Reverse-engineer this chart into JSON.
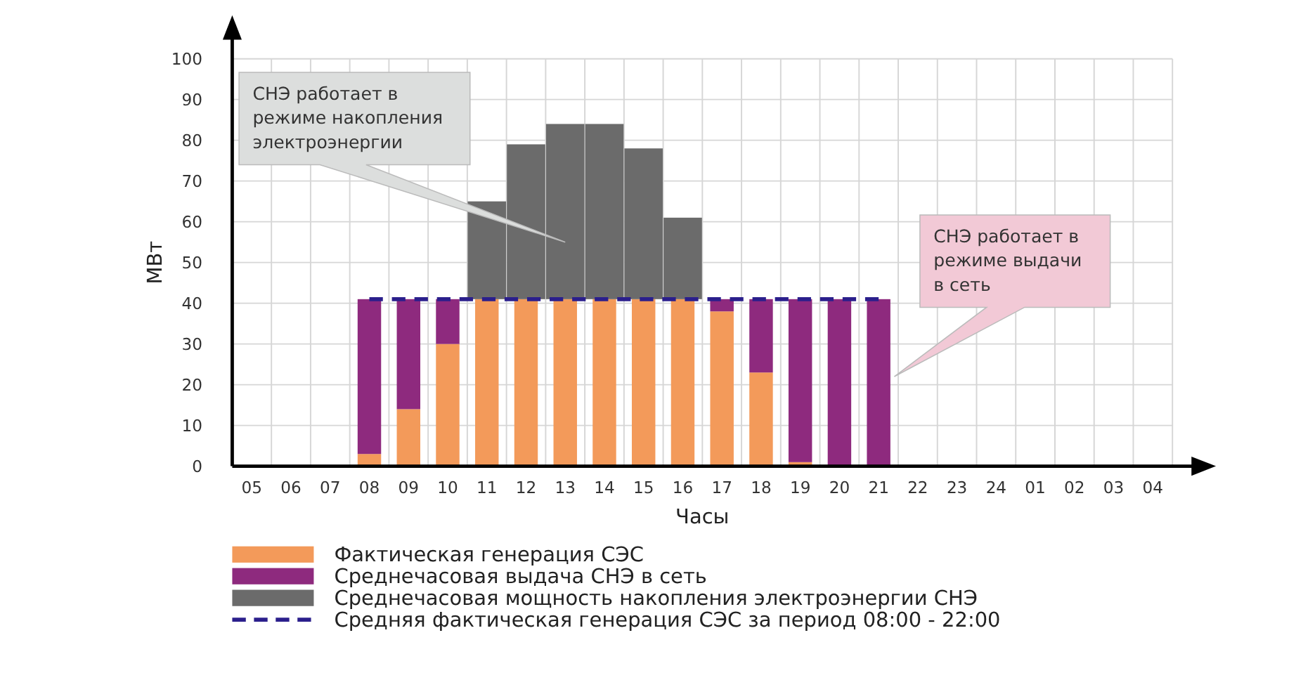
{
  "chart_data": {
    "type": "bar",
    "stacked": true,
    "xlabel": "Часы",
    "ylabel": "МВт",
    "categories": [
      "05",
      "06",
      "07",
      "08",
      "09",
      "10",
      "11",
      "12",
      "13",
      "14",
      "15",
      "16",
      "17",
      "18",
      "19",
      "20",
      "21",
      "22",
      "23",
      "24",
      "01",
      "02",
      "03",
      "04"
    ],
    "series": [
      {
        "name": "Фактическая генерация СЭС",
        "color": "#f39a5a",
        "values": [
          0,
          0,
          0,
          3,
          14,
          30,
          41,
          41,
          41,
          41,
          41,
          41,
          38,
          23,
          1,
          0,
          0,
          0,
          0,
          0,
          0,
          0,
          0,
          0
        ]
      },
      {
        "name": "Среднечасовая выдача СНЭ в сеть",
        "color": "#8e2a7e",
        "values": [
          0,
          0,
          0,
          38,
          27,
          11,
          0,
          0,
          0,
          0,
          0,
          0,
          3,
          18,
          40,
          41,
          41,
          0,
          0,
          0,
          0,
          0,
          0,
          0
        ]
      },
      {
        "name": "Среднечасовая мощность накопления электроэнергии СНЭ",
        "color": "#6b6b6b",
        "values": [
          0,
          0,
          0,
          0,
          0,
          0,
          24,
          38,
          43,
          43,
          37,
          20,
          0,
          0,
          0,
          0,
          0,
          0,
          0,
          0,
          0,
          0,
          0,
          0
        ]
      },
      {
        "name": "Средняя фактическая генерация СЭС за период 08:00 - 22:00",
        "type": "line",
        "color": "#2b1f8c",
        "line_style": "dashed",
        "values": [
          null,
          null,
          null,
          41,
          41,
          41,
          41,
          41,
          41,
          41,
          41,
          41,
          41,
          41,
          41,
          41,
          41,
          null,
          null,
          null,
          null,
          null,
          null,
          null
        ]
      }
    ],
    "ylim": [
      0,
      100
    ],
    "yticks": [
      0,
      10,
      20,
      30,
      40,
      50,
      60,
      70,
      80,
      90,
      100
    ],
    "grid": true,
    "legend": "bottom",
    "annotations": [
      "СНЭ работает в режиме накопления электроэнергии",
      "СНЭ работает в режиме выдачи в сеть"
    ]
  }
}
